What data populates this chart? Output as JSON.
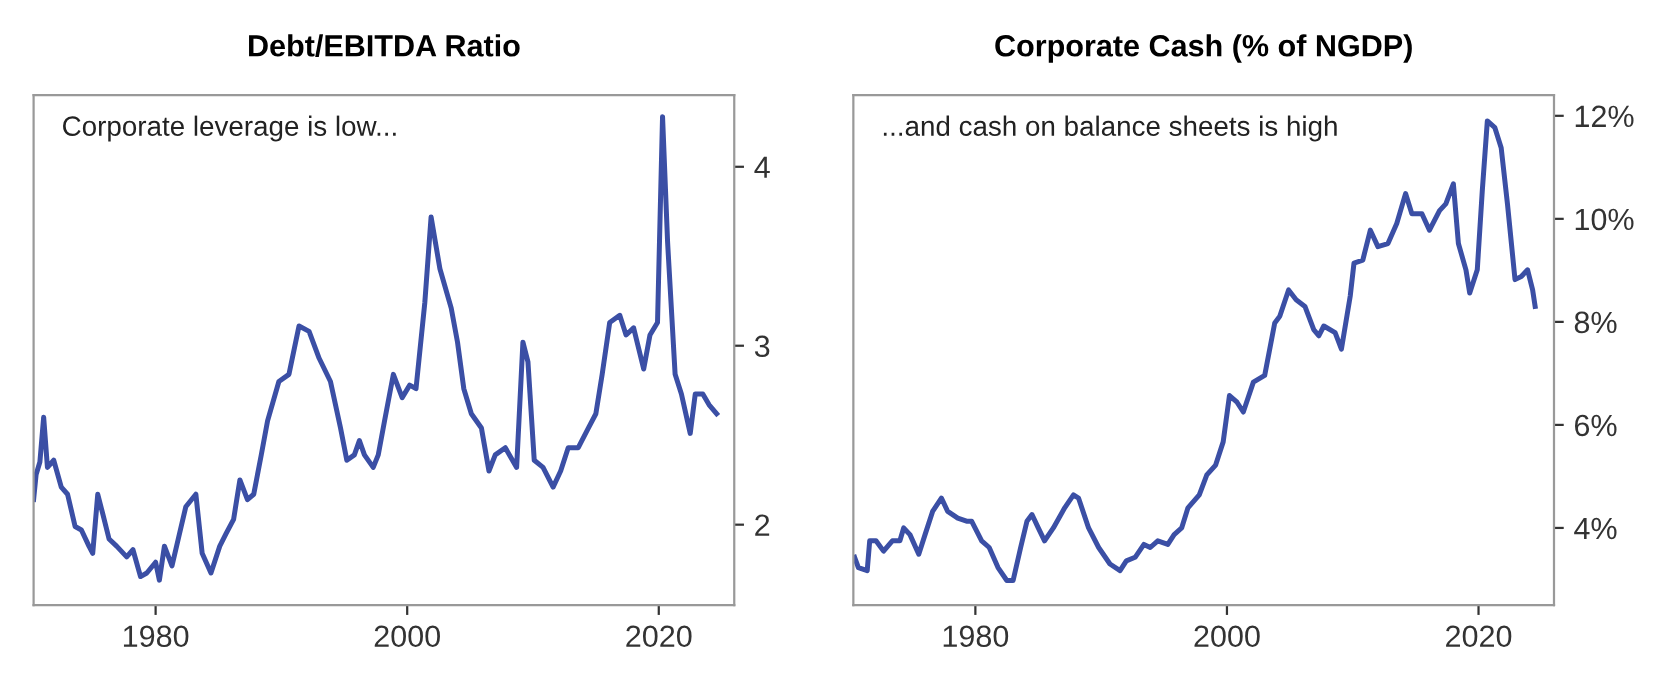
{
  "chart_data": [
    {
      "type": "line",
      "title": "Debt/EBITDA Ratio",
      "annotations": [
        "Corporate leverage is low..."
      ],
      "xlim": [
        1970.3,
        2026
      ],
      "xticks": [
        1980,
        2000,
        2020
      ],
      "ylim": [
        1.55,
        4.4
      ],
      "yticks": [
        2,
        3,
        4
      ],
      "grid": false,
      "legend": false,
      "tick_labels": "xy",
      "series": [
        {
          "color": "#3b4fa5",
          "x": [
            1970.3,
            1970.5,
            1970.8,
            1971.1,
            1971.4,
            1971.9,
            1972.5,
            1973.0,
            1973.6,
            1974.1,
            1974.7,
            1975.0,
            1975.4,
            1975.8,
            1976.3,
            1976.9,
            1977.7,
            1978.2,
            1978.8,
            1979.3,
            1980.0,
            1980.3,
            1980.7,
            1981.3,
            1981.8,
            1982.4,
            1983.2,
            1983.7,
            1984.4,
            1985.1,
            1985.6,
            1986.2,
            1986.7,
            1987.3,
            1987.8,
            1988.4,
            1988.9,
            1989.8,
            1990.6,
            1991.4,
            1992.2,
            1993.0,
            1993.9,
            1994.7,
            1995.2,
            1995.8,
            1996.2,
            1996.6,
            1997.3,
            1997.7,
            1998.2,
            1998.9,
            1999.6,
            2000.2,
            2000.7,
            2001.4,
            2001.9,
            2002.6,
            2003.5,
            2004.0,
            2004.5,
            2005.1,
            2005.9,
            2006.5,
            2007.0,
            2007.8,
            2008.7,
            2009.2,
            2009.6,
            2010.1,
            2010.8,
            2011.6,
            2012.2,
            2012.8,
            2013.6,
            2014.4,
            2015.0,
            2015.5,
            2016.1,
            2016.9,
            2017.4,
            2018.0,
            2018.8,
            2019.3,
            2019.9,
            2020.3,
            2020.7,
            2021.3,
            2021.8,
            2022.5,
            2022.9,
            2023.5,
            2024.0,
            2024.6
          ],
          "values": [
            2.14,
            2.28,
            2.35,
            2.6,
            2.32,
            2.36,
            2.21,
            2.17,
            1.99,
            1.97,
            1.88,
            1.84,
            2.17,
            2.06,
            1.92,
            1.88,
            1.82,
            1.86,
            1.71,
            1.73,
            1.79,
            1.69,
            1.88,
            1.77,
            1.92,
            2.1,
            2.17,
            1.84,
            1.73,
            1.88,
            1.95,
            2.03,
            2.25,
            2.14,
            2.17,
            2.39,
            2.58,
            2.8,
            2.84,
            3.11,
            3.08,
            2.93,
            2.8,
            2.54,
            2.36,
            2.39,
            2.47,
            2.39,
            2.32,
            2.39,
            2.58,
            2.84,
            2.71,
            2.78,
            2.76,
            3.24,
            3.72,
            3.43,
            3.21,
            3.02,
            2.76,
            2.62,
            2.54,
            2.3,
            2.39,
            2.43,
            2.32,
            3.02,
            2.91,
            2.36,
            2.32,
            2.21,
            2.3,
            2.43,
            2.43,
            2.54,
            2.62,
            2.84,
            3.13,
            3.17,
            3.06,
            3.1,
            2.87,
            3.06,
            3.13,
            4.28,
            3.58,
            2.84,
            2.73,
            2.51,
            2.73,
            2.73,
            2.67,
            2.62
          ]
        }
      ]
    },
    {
      "type": "line",
      "title": "Corporate Cash (% of NGDP)",
      "annotations": [
        "...and cash on balance sheets is high"
      ],
      "xlim": [
        1970.3,
        2026
      ],
      "xticks": [
        1980,
        2000,
        2020
      ],
      "ylim": [
        2.5,
        12.4
      ],
      "yticks": [
        {
          "value": 4,
          "label": "4%"
        },
        {
          "value": 6,
          "label": "6%"
        },
        {
          "value": 8,
          "label": "8%"
        },
        {
          "value": 10,
          "label": "10%"
        },
        {
          "value": 12,
          "label": "12%"
        }
      ],
      "grid": false,
      "legend": false,
      "tick_labels": "xy",
      "series": [
        {
          "color": "#3b4fa5",
          "x": [
            1970.4,
            1970.7,
            1971.4,
            1971.6,
            1972.1,
            1972.7,
            1973.4,
            1974.0,
            1974.3,
            1974.8,
            1975.5,
            1976.0,
            1976.6,
            1977.3,
            1977.8,
            1978.6,
            1979.3,
            1979.7,
            1980.5,
            1981.1,
            1981.8,
            1982.5,
            1983.0,
            1983.6,
            1984.1,
            1984.5,
            1985.0,
            1985.5,
            1986.2,
            1987.1,
            1987.8,
            1988.2,
            1989.0,
            1989.8,
            1990.7,
            1991.5,
            1992.0,
            1992.7,
            1993.4,
            1993.9,
            1994.5,
            1995.3,
            1995.8,
            1996.4,
            1996.9,
            1997.8,
            1998.4,
            1999.1,
            1999.7,
            2000.2,
            2000.8,
            2001.3,
            2002.1,
            2003.0,
            2003.8,
            2004.2,
            2004.9,
            2005.5,
            2006.2,
            2006.9,
            2007.3,
            2007.7,
            2008.6,
            2009.1,
            2009.8,
            2010.1,
            2010.8,
            2011.4,
            2012.0,
            2012.8,
            2013.5,
            2014.2,
            2014.7,
            2015.5,
            2016.1,
            2016.9,
            2017.4,
            2018.0,
            2018.4,
            2019.0,
            2019.3,
            2019.9,
            2020.3,
            2020.7,
            2021.3,
            2021.8,
            2022.3,
            2022.9,
            2023.4,
            2023.9,
            2024.3,
            2024.5
          ],
          "values": [
            3.43,
            3.23,
            3.17,
            3.75,
            3.75,
            3.55,
            3.75,
            3.75,
            4.0,
            3.87,
            3.49,
            3.87,
            4.32,
            4.58,
            4.32,
            4.19,
            4.13,
            4.13,
            3.75,
            3.62,
            3.23,
            2.98,
            2.98,
            3.62,
            4.13,
            4.26,
            4.0,
            3.75,
            4.0,
            4.39,
            4.64,
            4.58,
            4.0,
            3.62,
            3.3,
            3.17,
            3.36,
            3.43,
            3.68,
            3.62,
            3.75,
            3.68,
            3.87,
            4.0,
            4.39,
            4.64,
            5.03,
            5.22,
            5.67,
            6.57,
            6.44,
            6.25,
            6.83,
            6.96,
            7.98,
            8.11,
            8.62,
            8.43,
            8.3,
            7.85,
            7.73,
            7.92,
            7.79,
            7.47,
            8.5,
            9.14,
            9.2,
            9.78,
            9.46,
            9.52,
            9.91,
            10.49,
            10.1,
            10.1,
            9.78,
            10.16,
            10.29,
            10.68,
            9.52,
            9.01,
            8.56,
            9.01,
            10.55,
            11.9,
            11.77,
            11.38,
            10.29,
            8.82,
            8.88,
            9.01,
            8.62,
            8.3
          ]
        }
      ]
    }
  ]
}
